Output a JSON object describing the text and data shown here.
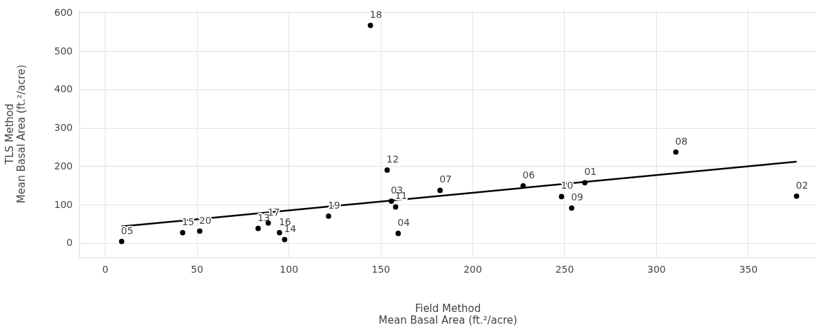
{
  "chart_data": {
    "type": "scatter",
    "xlabel": "Field Method\nMean Basal Area (ft.²/acre)",
    "ylabel": "TLS Method\nMean Basal Area (ft.²/acre)",
    "xlim": [
      -14,
      387
    ],
    "xticks": [
      0,
      50,
      100,
      150,
      200,
      250,
      300,
      350
    ],
    "ylim": [
      -38,
      608
    ],
    "yticks": [
      0,
      100,
      200,
      300,
      400,
      500,
      600
    ],
    "grid": true,
    "series": [
      {
        "color": "#000000",
        "marker": "circle",
        "x": [
          261.2,
          376.4,
          155.9,
          159.6,
          9.1,
          227.6,
          182.4,
          310.7,
          254,
          248.5,
          158.2,
          153.6,
          83.4,
          97.8,
          42.3,
          95,
          88.9,
          144.5,
          121.7,
          51.6
        ],
        "values": [
          157,
          122,
          109,
          25,
          4,
          149,
          137,
          237,
          91,
          121,
          94,
          190,
          38,
          9,
          27,
          27,
          52,
          567,
          70,
          31
        ]
      },
      {
        "type": "line",
        "color": "#000000",
        "x": [
          9.1,
          376.4
        ],
        "values": [
          43,
          212
        ]
      }
    ],
    "annotations": [
      {
        "text": "01",
        "x": 261.2,
        "y": 157
      },
      {
        "text": "02",
        "x": 376.4,
        "y": 122
      },
      {
        "text": "03",
        "x": 155.9,
        "y": 109
      },
      {
        "text": "04",
        "x": 159.6,
        "y": 25
      },
      {
        "text": "05",
        "x": 9.1,
        "y": 4
      },
      {
        "text": "06",
        "x": 227.6,
        "y": 149
      },
      {
        "text": "07",
        "x": 182.4,
        "y": 137
      },
      {
        "text": "08",
        "x": 310.7,
        "y": 237
      },
      {
        "text": "09",
        "x": 254,
        "y": 91
      },
      {
        "text": "10",
        "x": 248.5,
        "y": 121
      },
      {
        "text": "11",
        "x": 158.2,
        "y": 94
      },
      {
        "text": "12",
        "x": 153.6,
        "y": 190
      },
      {
        "text": "13",
        "x": 83.4,
        "y": 38
      },
      {
        "text": "14",
        "x": 97.8,
        "y": 9
      },
      {
        "text": "15",
        "x": 42.3,
        "y": 27
      },
      {
        "text": "16",
        "x": 95,
        "y": 27
      },
      {
        "text": "17",
        "x": 88.9,
        "y": 52
      },
      {
        "text": "18",
        "x": 144.5,
        "y": 567
      },
      {
        "text": "19",
        "x": 121.7,
        "y": 70
      },
      {
        "text": "20",
        "x": 51.6,
        "y": 31
      }
    ]
  }
}
